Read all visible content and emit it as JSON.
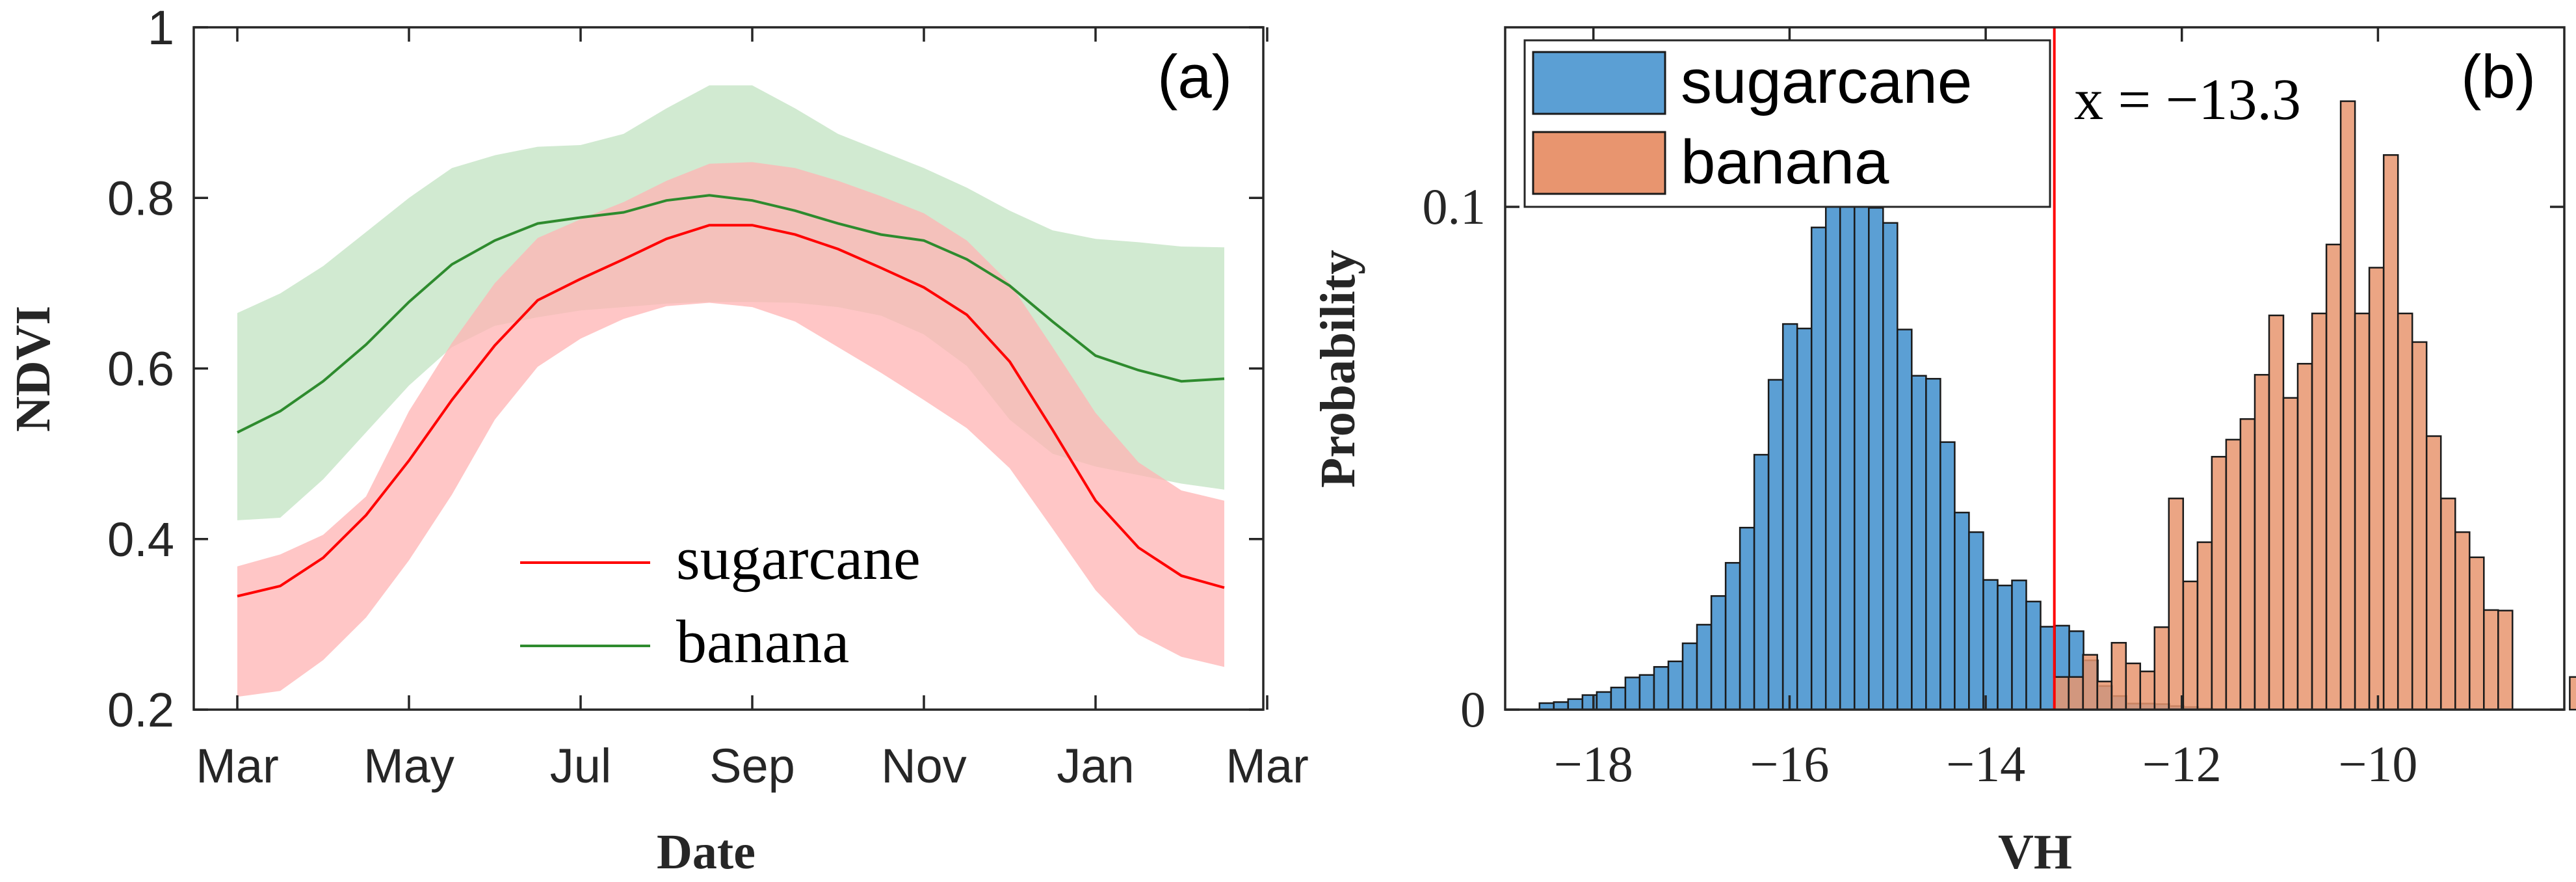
{
  "chart_data": [
    {
      "type": "line",
      "panel_label": "(a)",
      "title": "",
      "xlabel": "Date",
      "ylabel": "NDVI",
      "ylim": [
        0.2,
        1.0
      ],
      "yticks": [
        "0.2",
        "0.4",
        "0.6",
        "0.8",
        "1"
      ],
      "xlim": [
        0,
        24
      ],
      "xticks": [
        {
          "label": "Mar",
          "pos": 0
        },
        {
          "label": "May",
          "pos": 4
        },
        {
          "label": "Jul",
          "pos": 8
        },
        {
          "label": "Sep",
          "pos": 12
        },
        {
          "label": "Nov",
          "pos": 16
        },
        {
          "label": "Jan",
          "pos": 20
        },
        {
          "label": "Mar",
          "pos": 24
        }
      ],
      "x": [
        0,
        1,
        2,
        3,
        4,
        5,
        6,
        7,
        8,
        9,
        10,
        11,
        12,
        13,
        14,
        15,
        16,
        17,
        18,
        19,
        20,
        21,
        22,
        23
      ],
      "legend": "bottom-center",
      "series": [
        {
          "name": "sugarcane",
          "color": "#ff0000",
          "band_color": "#ffb3b3",
          "values": [
            0.333,
            0.345,
            0.378,
            0.428,
            0.492,
            0.563,
            0.627,
            0.68,
            0.705,
            0.728,
            0.752,
            0.768,
            0.768,
            0.757,
            0.74,
            0.718,
            0.695,
            0.663,
            0.608,
            0.528,
            0.445,
            0.39,
            0.357,
            0.343
          ],
          "lower": [
            0.215,
            0.222,
            0.258,
            0.308,
            0.375,
            0.452,
            0.54,
            0.602,
            0.635,
            0.658,
            0.673,
            0.677,
            0.672,
            0.655,
            0.625,
            0.595,
            0.563,
            0.53,
            0.483,
            0.412,
            0.34,
            0.288,
            0.262,
            0.25
          ],
          "upper": [
            0.368,
            0.382,
            0.405,
            0.45,
            0.55,
            0.63,
            0.7,
            0.753,
            0.775,
            0.795,
            0.82,
            0.84,
            0.842,
            0.835,
            0.82,
            0.802,
            0.782,
            0.75,
            0.7,
            0.625,
            0.548,
            0.49,
            0.457,
            0.445
          ]
        },
        {
          "name": "banana",
          "color": "#2e8b2e",
          "band_color": "#c2e3c2",
          "values": [
            0.525,
            0.55,
            0.585,
            0.628,
            0.678,
            0.722,
            0.75,
            0.77,
            0.777,
            0.783,
            0.797,
            0.803,
            0.797,
            0.785,
            0.77,
            0.757,
            0.75,
            0.728,
            0.697,
            0.655,
            0.615,
            0.598,
            0.585,
            0.588
          ],
          "lower": [
            0.422,
            0.425,
            0.47,
            0.525,
            0.58,
            0.625,
            0.65,
            0.66,
            0.668,
            0.672,
            0.676,
            0.678,
            0.678,
            0.677,
            0.672,
            0.662,
            0.64,
            0.603,
            0.54,
            0.5,
            0.485,
            0.475,
            0.465,
            0.458
          ],
          "upper": [
            0.665,
            0.688,
            0.72,
            0.76,
            0.8,
            0.835,
            0.85,
            0.86,
            0.862,
            0.875,
            0.905,
            0.932,
            0.932,
            0.905,
            0.875,
            0.855,
            0.835,
            0.812,
            0.785,
            0.762,
            0.752,
            0.748,
            0.743,
            0.742
          ]
        }
      ]
    },
    {
      "type": "bar",
      "subtype": "histogram",
      "panel_label": "(b)",
      "title": "",
      "xlabel": "VH",
      "ylabel": "Probability",
      "xlim": [
        -18.9,
        -8.1
      ],
      "ylim": [
        0,
        0.1357
      ],
      "xticks": [
        {
          "label": "−18",
          "value": -18
        },
        {
          "label": "−16",
          "value": -16
        },
        {
          "label": "−14",
          "value": -14
        },
        {
          "label": "−12",
          "value": -12
        },
        {
          "label": "−10",
          "value": -10
        }
      ],
      "yticks": [
        {
          "label": "0",
          "value": 0
        },
        {
          "label": "0.1",
          "value": 0.1
        }
      ],
      "bin_width": 0.146,
      "legend": "top-left",
      "series": [
        {
          "name": "sugarcane",
          "color": "#5b9fd4",
          "bin_start": -18.55,
          "values": [
            0.0013,
            0.0015,
            0.0021,
            0.0029,
            0.0035,
            0.0044,
            0.0064,
            0.0069,
            0.0085,
            0.0096,
            0.0132,
            0.0169,
            0.0226,
            0.0292,
            0.0362,
            0.0507,
            0.0656,
            0.0767,
            0.0758,
            0.0959,
            0.1046,
            0.1002,
            0.1021,
            0.0998,
            0.0968,
            0.0756,
            0.0664,
            0.0658,
            0.0532,
            0.0392,
            0.0353,
            0.0258,
            0.0247,
            0.0257,
            0.0215,
            0.0165,
            0.0167,
            0.0156,
            0.0098,
            0.0047,
            0.0027,
            0.0012,
            0.0012,
            0.0011,
            0.0007,
            0.0005,
            0.0002
          ]
        },
        {
          "name": "banana",
          "color": "#e8956f",
          "bin_start": -13.3,
          "values": [
            0.0065,
            0.0065,
            0.0109,
            0.0056,
            0.0133,
            0.0092,
            0.0076,
            0.0164,
            0.042,
            0.0255,
            0.0333,
            0.0503,
            0.0537,
            0.0578,
            0.0666,
            0.0784,
            0.062,
            0.0688,
            0.0788,
            0.0925,
            0.121,
            0.0788,
            0.0879,
            0.1103,
            0.0788,
            0.0731,
            0.0544,
            0.042,
            0.0353,
            0.0303,
            0.0198,
            0.0197,
            0.0065
          ],
          "gaps": [
            {
              "after_index": 31,
              "skip_bins": 4
            }
          ]
        }
      ],
      "annotations": [
        {
          "text": "x = −13.3",
          "vline_x": -13.3,
          "color": "#ff0000"
        }
      ]
    }
  ]
}
